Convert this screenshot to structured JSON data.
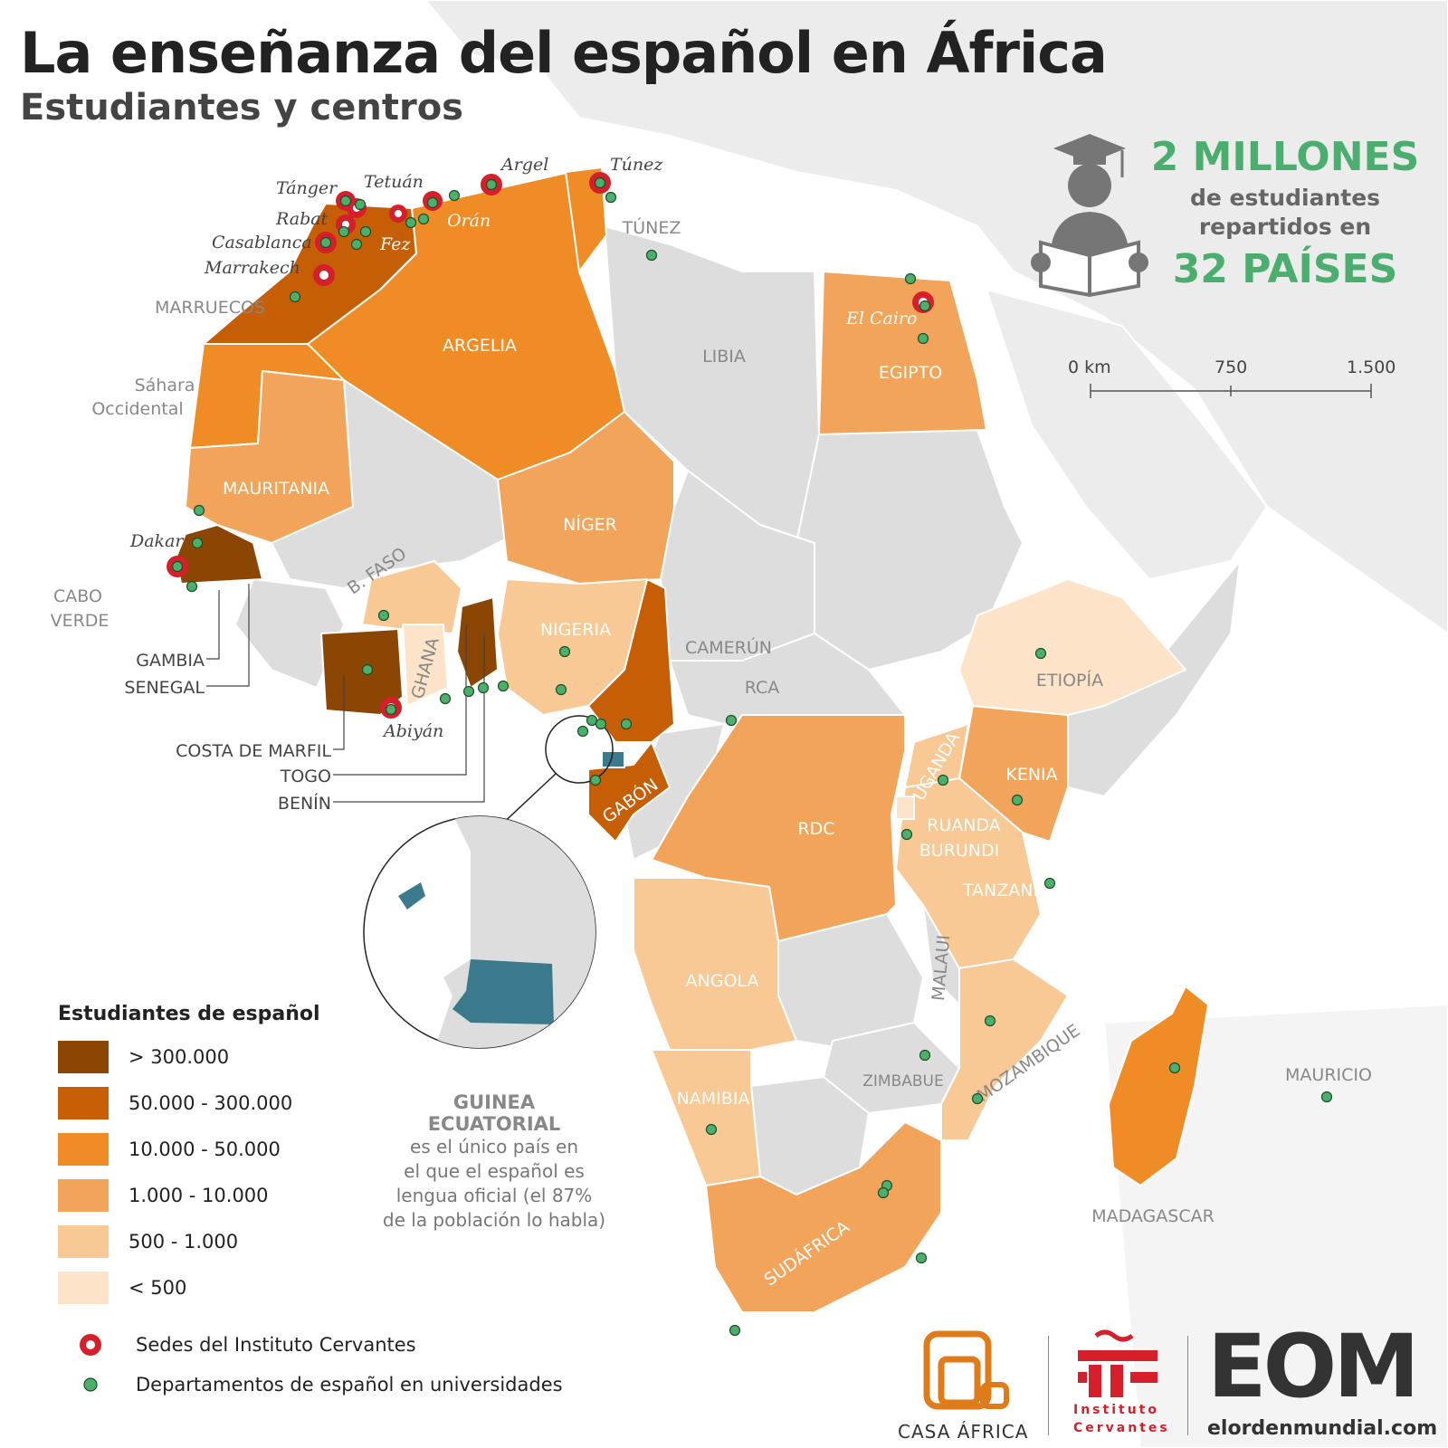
{
  "title": "La enseñanza del español en África",
  "subtitle": "Estudiantes y centros",
  "stats": {
    "big": "2 MILLONES",
    "line1": "de estudiantes",
    "line2": "repartidos en",
    "countries": "32 PAÍSES"
  },
  "scale": {
    "labels": [
      "0 km",
      "750",
      "1.500"
    ]
  },
  "colors": {
    "gt300k": "#8a4602",
    "c50k_300k": "#c65e06",
    "c10k_50k": "#f08c25",
    "c1k_10k": "#f2a55a",
    "c500_1k": "#f8c895",
    "lt500": "#fde3c8",
    "no_data": "#dddddd",
    "eq_guinea": "#3b7a8c",
    "cervantes": "#d51f2b",
    "university": "#4caf6a",
    "stat_green": "#4cae6e"
  },
  "legend": {
    "title": "Estudiantes de español",
    "items": [
      {
        "label": "> 300.000",
        "color": "#8a4602"
      },
      {
        "label": "50.000 - 300.000",
        "color": "#c65e06"
      },
      {
        "label": "10.000 - 50.000",
        "color": "#f08c25"
      },
      {
        "label": "1.000 - 10.000",
        "color": "#f2a55a"
      },
      {
        "label": "500 - 1.000",
        "color": "#f8c895"
      },
      {
        "label": "< 500",
        "color": "#fde3c8"
      }
    ],
    "symbols": {
      "cervantes": "Sedes del Instituto Cervantes",
      "university": "Departamentos de español en universidades"
    }
  },
  "countries": {
    "marruecos": "MARRUECOS",
    "sahara1": "Sáhara",
    "sahara2": "Occidental",
    "argelia": "ARGELIA",
    "tunez": "TÚNEZ",
    "libia": "LIBIA",
    "egipto": "EGIPTO",
    "mauritania": "MAURITANIA",
    "niger": "NÍGER",
    "bfaso": "B. FASO",
    "cabo1": "CABO",
    "cabo2": "VERDE",
    "gambia": "GAMBIA",
    "senegal": "SENEGAL",
    "ghana": "GHANA",
    "nigeria": "NIGERIA",
    "camerun": "CAMERÚN",
    "rca": "RCA",
    "etiopia": "ETIOPÍA",
    "costa": "COSTA DE MARFIL",
    "togo": "TOGO",
    "benin": "BENÍN",
    "uganda": "UGANDA",
    "kenia": "KENIA",
    "gabon": "GABÓN",
    "rdc": "RDC",
    "ruanda": "RUANDA",
    "burundi": "BURUNDI",
    "tanzania": "TANZANIA",
    "angola": "ANGOLA",
    "malaui": "MALAUI",
    "mozambique": "MOZAMBIQUE",
    "zimbabue": "ZIMBABUE",
    "namibia": "NAMIBIA",
    "mauricio": "MAURICIO",
    "madagascar": "MADAGASCAR",
    "sudafrica": "SUDÁFRICA"
  },
  "cities": {
    "argel": "Argel",
    "tunez": "Túnez",
    "tanger": "Tánger",
    "tetuan": "Tetuán",
    "rabat": "Rabat",
    "casablanca": "Casablanca",
    "marrakech": "Marrakech",
    "fez": "Fez",
    "oran": "Orán",
    "cairo": "El Cairo",
    "dakar": "Dakar",
    "abiyan": "Abiyán"
  },
  "note": {
    "h1": "GUINEA",
    "h2": "ECUATORIAL",
    "l1": "es el único país en",
    "l2": "el que el español es",
    "l3": "lengua oficial (el 87%",
    "l4": "de la población lo habla)"
  },
  "logos": {
    "casa": "CASA ÁFRICA",
    "ic1": "Instituto",
    "ic2": "Cervantes",
    "eom": "EOM",
    "eom_url": "elordenmundial.com"
  },
  "icons": {
    "student": "student-reading-icon"
  }
}
